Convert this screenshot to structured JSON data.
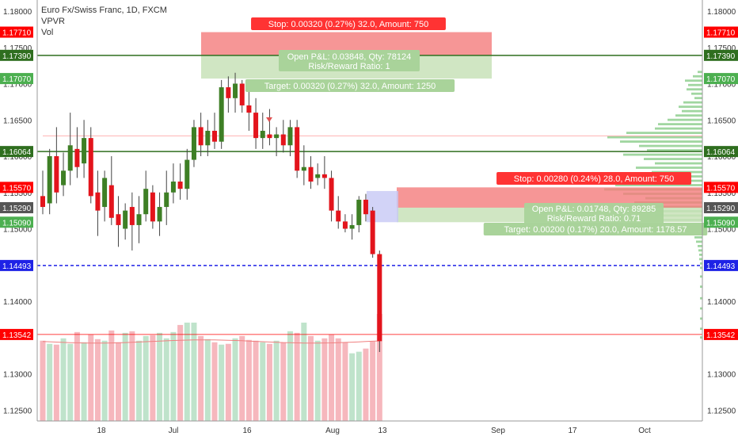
{
  "legend": {
    "title": "Euro Fx/Swiss Franc, 1D, FXCM",
    "indicator1": "VPVR",
    "indicator2": "Vol"
  },
  "chart_data": {
    "type": "candlestick",
    "ylim": [
      1.1225,
      1.1815
    ],
    "y_ticks": [
      "1.18000",
      "1.17500",
      "1.17000",
      "1.16500",
      "1.16000",
      "1.15500",
      "1.15000",
      "1.14000",
      "1.13000",
      "1.12500"
    ],
    "y_tick_values": [
      1.18,
      1.175,
      1.17,
      1.165,
      1.16,
      1.155,
      1.15,
      1.14,
      1.13,
      1.125
    ],
    "x_ticks": [
      "18",
      "Jul",
      "16",
      "Aug",
      "13",
      "Sep",
      "17",
      "Oct"
    ],
    "price_levels": [
      {
        "label": "1.17710",
        "value": 1.1771,
        "color": "#ff0000",
        "line": false
      },
      {
        "label": "1.17390",
        "value": 1.1739,
        "color": "#2f6e1f",
        "line": true
      },
      {
        "label": "1.17070",
        "value": 1.1707,
        "color": "#4caf50",
        "line": false
      },
      {
        "label": "1.16064",
        "value": 1.16064,
        "color": "#2f6e1f",
        "line": true
      },
      {
        "label": "1.15570",
        "value": 1.1557,
        "color": "#ff0000",
        "line": false
      },
      {
        "label": "1.15290",
        "value": 1.1529,
        "color": "#555555",
        "line": false
      },
      {
        "label": "1.15090",
        "value": 1.1509,
        "color": "#4caf50",
        "line": false
      },
      {
        "label": "1.14493",
        "value": 1.14493,
        "color": "#1e22e6",
        "line": true,
        "dashed": true
      },
      {
        "label": "1.13542",
        "value": 1.13542,
        "color": "#ff0000",
        "line": true,
        "thin": true
      }
    ],
    "candles": [
      {
        "o": 1.1545,
        "h": 1.158,
        "l": 1.152,
        "c": 1.153
      },
      {
        "o": 1.1535,
        "h": 1.161,
        "l": 1.152,
        "c": 1.16
      },
      {
        "o": 1.16,
        "h": 1.164,
        "l": 1.1535,
        "c": 1.155
      },
      {
        "o": 1.156,
        "h": 1.1605,
        "l": 1.1545,
        "c": 1.158
      },
      {
        "o": 1.158,
        "h": 1.166,
        "l": 1.156,
        "c": 1.1615
      },
      {
        "o": 1.161,
        "h": 1.164,
        "l": 1.157,
        "c": 1.1585
      },
      {
        "o": 1.159,
        "h": 1.165,
        "l": 1.157,
        "c": 1.1625
      },
      {
        "o": 1.1625,
        "h": 1.164,
        "l": 1.1535,
        "c": 1.1545
      },
      {
        "o": 1.155,
        "h": 1.158,
        "l": 1.149,
        "c": 1.1525
      },
      {
        "o": 1.153,
        "h": 1.158,
        "l": 1.151,
        "c": 1.157
      },
      {
        "o": 1.156,
        "h": 1.16,
        "l": 1.1505,
        "c": 1.1515
      },
      {
        "o": 1.152,
        "h": 1.1545,
        "l": 1.1475,
        "c": 1.1505
      },
      {
        "o": 1.15,
        "h": 1.1535,
        "l": 1.1485,
        "c": 1.1525
      },
      {
        "o": 1.153,
        "h": 1.155,
        "l": 1.147,
        "c": 1.1505
      },
      {
        "o": 1.1505,
        "h": 1.1545,
        "l": 1.148,
        "c": 1.152
      },
      {
        "o": 1.152,
        "h": 1.158,
        "l": 1.151,
        "c": 1.1555
      },
      {
        "o": 1.155,
        "h": 1.156,
        "l": 1.15,
        "c": 1.151
      },
      {
        "o": 1.151,
        "h": 1.155,
        "l": 1.149,
        "c": 1.153
      },
      {
        "o": 1.153,
        "h": 1.158,
        "l": 1.1505,
        "c": 1.155
      },
      {
        "o": 1.155,
        "h": 1.159,
        "l": 1.1535,
        "c": 1.1565
      },
      {
        "o": 1.1565,
        "h": 1.159,
        "l": 1.154,
        "c": 1.1555
      },
      {
        "o": 1.1555,
        "h": 1.161,
        "l": 1.154,
        "c": 1.1595
      },
      {
        "o": 1.1595,
        "h": 1.165,
        "l": 1.1585,
        "c": 1.164
      },
      {
        "o": 1.164,
        "h": 1.166,
        "l": 1.16,
        "c": 1.1615
      },
      {
        "o": 1.1615,
        "h": 1.165,
        "l": 1.16,
        "c": 1.1635
      },
      {
        "o": 1.1635,
        "h": 1.166,
        "l": 1.161,
        "c": 1.162
      },
      {
        "o": 1.162,
        "h": 1.1705,
        "l": 1.161,
        "c": 1.1695
      },
      {
        "o": 1.1695,
        "h": 1.171,
        "l": 1.166,
        "c": 1.168
      },
      {
        "o": 1.168,
        "h": 1.1715,
        "l": 1.166,
        "c": 1.17
      },
      {
        "o": 1.17,
        "h": 1.1705,
        "l": 1.166,
        "c": 1.167
      },
      {
        "o": 1.167,
        "h": 1.169,
        "l": 1.1635,
        "c": 1.166
      },
      {
        "o": 1.166,
        "h": 1.168,
        "l": 1.161,
        "c": 1.1625
      },
      {
        "o": 1.1625,
        "h": 1.166,
        "l": 1.161,
        "c": 1.1635
      },
      {
        "o": 1.163,
        "h": 1.1665,
        "l": 1.1615,
        "c": 1.1625
      },
      {
        "o": 1.1625,
        "h": 1.164,
        "l": 1.16,
        "c": 1.163
      },
      {
        "o": 1.163,
        "h": 1.165,
        "l": 1.1605,
        "c": 1.1615
      },
      {
        "o": 1.1615,
        "h": 1.165,
        "l": 1.16,
        "c": 1.164
      },
      {
        "o": 1.164,
        "h": 1.165,
        "l": 1.157,
        "c": 1.158
      },
      {
        "o": 1.158,
        "h": 1.1615,
        "l": 1.156,
        "c": 1.1585
      },
      {
        "o": 1.1585,
        "h": 1.16,
        "l": 1.1555,
        "c": 1.1565
      },
      {
        "o": 1.157,
        "h": 1.159,
        "l": 1.156,
        "c": 1.1575
      },
      {
        "o": 1.1575,
        "h": 1.16,
        "l": 1.1555,
        "c": 1.157
      },
      {
        "o": 1.157,
        "h": 1.158,
        "l": 1.151,
        "c": 1.1525
      },
      {
        "o": 1.1525,
        "h": 1.1545,
        "l": 1.15,
        "c": 1.151
      },
      {
        "o": 1.151,
        "h": 1.152,
        "l": 1.1495,
        "c": 1.15
      },
      {
        "o": 1.15,
        "h": 1.152,
        "l": 1.1485,
        "c": 1.1505
      },
      {
        "o": 1.1505,
        "h": 1.1545,
        "l": 1.1495,
        "c": 1.154
      },
      {
        "o": 1.154,
        "h": 1.1548,
        "l": 1.151,
        "c": 1.152
      },
      {
        "o": 1.1525,
        "h": 1.153,
        "l": 1.146,
        "c": 1.1465
      },
      {
        "o": 1.1465,
        "h": 1.147,
        "l": 1.133,
        "c": 1.1345
      }
    ],
    "volumes": [
      1020,
      980,
      970,
      1050,
      980,
      1130,
      1000,
      1100,
      1040,
      1020,
      1150,
      1000,
      1120,
      1140,
      1020,
      1080,
      1090,
      1120,
      1050,
      1130,
      1220,
      1250,
      1250,
      1080,
      1040,
      1000,
      970,
      980,
      1050,
      1080,
      1030,
      1020,
      1000,
      980,
      1020,
      1000,
      1140,
      1120,
      1250,
      1080,
      1020,
      1050,
      1100,
      1050,
      1000,
      860,
      880,
      920,
      1010,
      1360
    ],
    "vpvr": [
      {
        "price": 1.1716,
        "len": 6
      },
      {
        "price": 1.171,
        "len": 12
      },
      {
        "price": 1.1704,
        "len": 22
      },
      {
        "price": 1.1698,
        "len": 18
      },
      {
        "price": 1.1692,
        "len": 20
      },
      {
        "price": 1.1686,
        "len": 14
      },
      {
        "price": 1.168,
        "len": 10
      },
      {
        "price": 1.1674,
        "len": 24
      },
      {
        "price": 1.1668,
        "len": 30
      },
      {
        "price": 1.1662,
        "len": 26
      },
      {
        "price": 1.1656,
        "len": 34
      },
      {
        "price": 1.165,
        "len": 44
      },
      {
        "price": 1.1644,
        "len": 56
      },
      {
        "price": 1.1638,
        "len": 60
      },
      {
        "price": 1.1632,
        "len": 96
      },
      {
        "price": 1.1626,
        "len": 120
      },
      {
        "price": 1.162,
        "len": 104
      },
      {
        "price": 1.1614,
        "len": 80
      },
      {
        "price": 1.1608,
        "len": 70
      },
      {
        "price": 1.1602,
        "len": 100
      },
      {
        "price": 1.1596,
        "len": 74
      },
      {
        "price": 1.159,
        "len": 60
      },
      {
        "price": 1.1584,
        "len": 84
      },
      {
        "price": 1.1578,
        "len": 64
      },
      {
        "price": 1.1572,
        "len": 70
      },
      {
        "price": 1.1566,
        "len": 96
      },
      {
        "price": 1.156,
        "len": 110
      },
      {
        "price": 1.1554,
        "len": 124
      },
      {
        "price": 1.1548,
        "len": 100
      },
      {
        "price": 1.1542,
        "len": 72
      },
      {
        "price": 1.1536,
        "len": 86
      },
      {
        "price": 1.153,
        "len": 114
      },
      {
        "price": 1.1524,
        "len": 90
      },
      {
        "price": 1.1518,
        "len": 60
      },
      {
        "price": 1.1512,
        "len": 52
      },
      {
        "price": 1.1506,
        "len": 40
      },
      {
        "price": 1.15,
        "len": 30
      },
      {
        "price": 1.1494,
        "len": 18
      },
      {
        "price": 1.1488,
        "len": 10
      },
      {
        "price": 1.1482,
        "len": 8
      },
      {
        "price": 1.1476,
        "len": 6
      },
      {
        "price": 1.147,
        "len": 5
      },
      {
        "price": 1.1464,
        "len": 4
      },
      {
        "price": 1.1458,
        "len": 4
      },
      {
        "price": 1.1452,
        "len": 3
      },
      {
        "price": 1.1446,
        "len": 3
      },
      {
        "price": 1.1434,
        "len": 3
      },
      {
        "price": 1.142,
        "len": 3
      },
      {
        "price": 1.1404,
        "len": 3
      },
      {
        "price": 1.139,
        "len": 3
      },
      {
        "price": 1.1376,
        "len": 3
      },
      {
        "price": 1.1362,
        "len": 3
      },
      {
        "price": 1.135,
        "len": 3
      }
    ],
    "positions": [
      {
        "entry": 1.1739,
        "stop": 1.1771,
        "target": 1.1707,
        "stop_text": "Stop: 0.00320 (0.27%) 32.0, Amount: 750",
        "pnl_text": "Open P&L: 0.03848, Qty: 78124",
        "rr_text": "Risk/Reward Ratio: 1",
        "target_text": "Target: 0.00320 (0.27%) 32.0, Amount: 1250"
      },
      {
        "entry": 1.1529,
        "stop": 1.1557,
        "target": 1.1509,
        "stop_text": "Stop: 0.00280 (0.24%) 28.0, Amount: 750",
        "pnl_text": "Open P&L: 0.01748, Qty: 89285",
        "rr_text": "Risk/Reward Ratio: 0.71",
        "target_text": "Target: 0.00200 (0.17%) 20.0, Amount: 1178.57"
      }
    ],
    "colors": {
      "up": "#3e7f25",
      "down": "#e3141c",
      "vol_up": "#bfe3cb",
      "vol_down": "#f6b7bd",
      "stop_zone": "#f47c7c",
      "target_zone": "#c8e2b8",
      "axis_text": "#333333",
      "grid_line": "#ffc8c8"
    }
  }
}
